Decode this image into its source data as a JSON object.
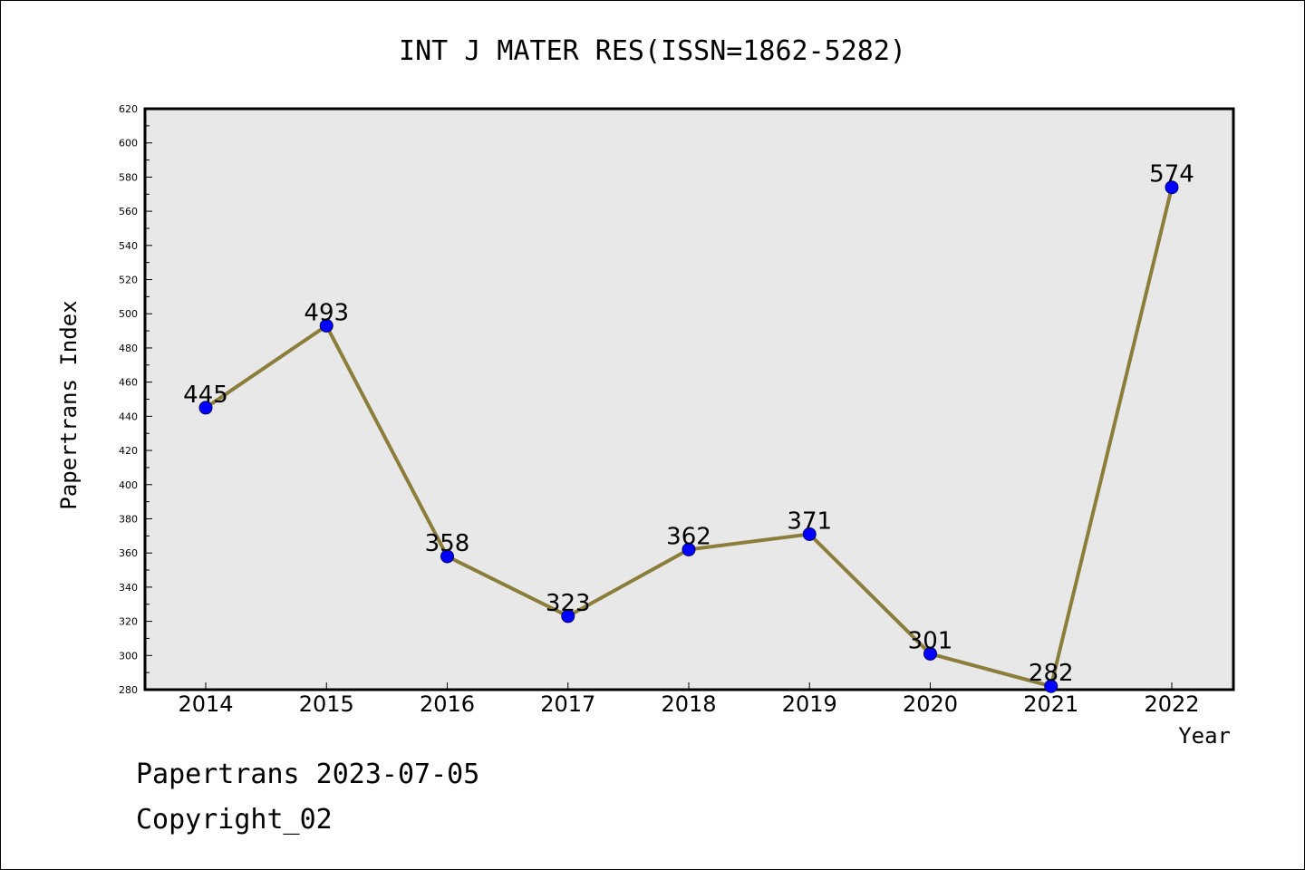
{
  "chart_data": {
    "type": "line",
    "title": "INT J MATER RES(ISSN=1862-5282)",
    "xlabel": "Year",
    "ylabel": "Papertrans Index",
    "categories": [
      "2014",
      "2015",
      "2016",
      "2017",
      "2018",
      "2019",
      "2020",
      "2021",
      "2022"
    ],
    "series": [
      {
        "values": [
          445,
          493,
          358,
          323,
          362,
          371,
          301,
          282,
          574
        ]
      }
    ],
    "data_labels": [
      "445",
      "493",
      "358",
      "323",
      "362",
      "371",
      "301",
      "282",
      "574"
    ],
    "ylim": [
      280,
      620
    ],
    "yticks": [
      280,
      300,
      320,
      340,
      360,
      380,
      400,
      420,
      440,
      460,
      480,
      500,
      520,
      540,
      560,
      580,
      600,
      620
    ],
    "grid": false,
    "colors": {
      "line": "#8b7d3a",
      "marker": "#0000ff",
      "plot_bg": "#e8e8e8"
    }
  },
  "footer": {
    "line1": "Papertrans 2023-07-05",
    "line2": "Copyright_02"
  }
}
